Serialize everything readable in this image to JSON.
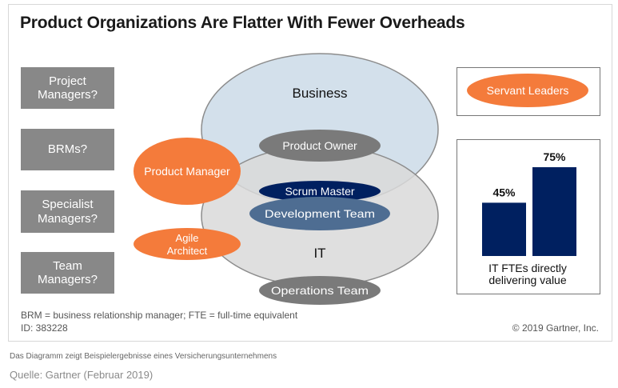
{
  "title": "Product Organizations Are Flatter With Fewer Overheads",
  "left_boxes": [
    "Project\nManagers?",
    "BRMs?",
    "Specialist\nManagers?",
    "Team\nManagers?"
  ],
  "circles": {
    "business": "Business",
    "it": "IT"
  },
  "ovals": {
    "product_owner": "Product Owner",
    "scrum_master": "Scrum Master",
    "development_team": "Development Team",
    "operations_team": "Operations Team",
    "product_manager": "Product Manager",
    "agile_architect_line1": "Agile",
    "agile_architect_line2": "Architect",
    "servant_leaders": "Servant Leaders"
  },
  "colors": {
    "gray_box": "#888888",
    "orange": "#F47B3B",
    "circle_blue": "#D3E0EB",
    "circle_gray": "#D9D9D9",
    "gray_oval": "#7A7A7A",
    "navy": "#002060",
    "dev_blue": "#4E6D92"
  },
  "chart_data": {
    "type": "bar",
    "categories": [
      "",
      ""
    ],
    "values": [
      45,
      75
    ],
    "data_labels": [
      "45%",
      "75%"
    ],
    "xlabel": "IT FTEs directly\ndelivering value",
    "ylim": [
      0,
      100
    ]
  },
  "footnote": "BRM = business relationship manager; FTE = full-time equivalent",
  "id_line": "ID: 383228",
  "copyright": "© 2019 Gartner, Inc.",
  "caption": "Das Diagramm zeigt Beispielergebnisse eines Versicherungsunternehmens",
  "source": "Quelle: Gartner (Februar 2019)"
}
